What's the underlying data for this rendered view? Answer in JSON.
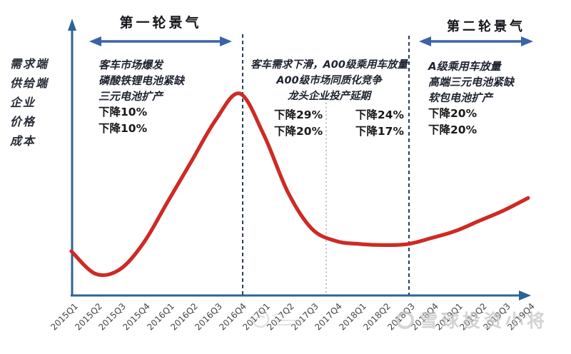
{
  "chart_data": {
    "type": "line",
    "title_left": "第一轮景气",
    "title_right": "第二轮景气",
    "categories": [
      "2015Q1",
      "2015Q2",
      "2015Q3",
      "2015Q4",
      "2016Q1",
      "2016Q2",
      "2016Q3",
      "2016Q4",
      "2017Q1",
      "2017Q2",
      "2017Q3",
      "2017Q4",
      "2018Q1",
      "2018Q2",
      "2018Q3",
      "2018Q4",
      "2019Q1",
      "2019Q2",
      "2019Q3",
      "2019Q4"
    ],
    "values": [
      23,
      12,
      14,
      27,
      47,
      67,
      87,
      100,
      80,
      52,
      34,
      28,
      26.5,
      26,
      26.5,
      29.5,
      33,
      38,
      43,
      49
    ],
    "ylabel_lines": [
      "需求端",
      "供给端",
      "企业",
      "价格",
      "成本"
    ],
    "ylim": [
      0,
      110
    ],
    "grid": false,
    "legend": false,
    "line_color": "#ce2a25",
    "axis_color": "#2d6496",
    "dividers": [
      {
        "at": "2016Q4",
        "style": "dashed-dark"
      },
      {
        "at": "2017Q3/2017Q4",
        "style": "dotted-light"
      },
      {
        "at": "2018Q3",
        "style": "dashed-dark"
      }
    ],
    "annotations": {
      "phase1": [
        "客车市场爆发",
        "磷酸铁锂电池紧缺",
        "三元电池扩产",
        "下降10%",
        "下降10%"
      ],
      "transition": {
        "lines": [
          "客车需求下滑，A00级乘用车放量",
          "A00级市场同质化竞争",
          "龙头企业投产延期"
        ],
        "pct_left": [
          "下降29%",
          "下降20%"
        ],
        "pct_right": [
          "下降24%",
          "下降17%"
        ]
      },
      "phase2": [
        "A级乘用车放量",
        "高端三元电池紧缺",
        "软包电池扩产",
        "下降20%",
        "下降20%"
      ]
    }
  },
  "watermark": {
    "site_text": "雪球投资小将"
  }
}
